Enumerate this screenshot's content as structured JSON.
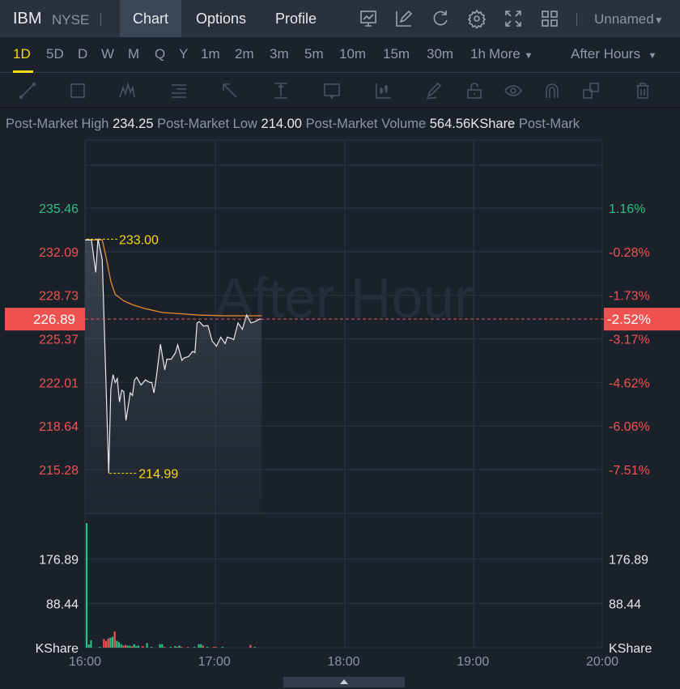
{
  "header": {
    "symbol": "IBM",
    "exchange": "NYSE",
    "tabs": [
      {
        "label": "Chart",
        "active": true
      },
      {
        "label": "Options"
      },
      {
        "label": "Profile"
      }
    ],
    "icons": [
      "indicator-icon",
      "draw-icon",
      "refresh-icon",
      "settings-icon",
      "fullscreen-icon",
      "layout-grid-icon"
    ],
    "layout_name": "Unnamed"
  },
  "periods": {
    "items": [
      "1D",
      "5D",
      "D",
      "W",
      "M",
      "Q",
      "Y",
      "1m",
      "2m",
      "3m",
      "5m",
      "10m",
      "15m",
      "30m",
      "1h"
    ],
    "active": "1D",
    "more_label": "More",
    "session_label": "After Hours"
  },
  "drawing_tools": [
    "line-tool-icon",
    "rectangle-tool-icon",
    "pattern-tool-icon",
    "fibonacci-tool-icon",
    "arrow-tool-icon",
    "measure-tool-icon",
    "text-tool-icon",
    "candle-tool-icon",
    "pencil-icon",
    "unlock-icon",
    "eye-icon",
    "magnet-icon",
    "clone-icon",
    "trash-icon"
  ],
  "stats": {
    "high_label": "Post-Market High",
    "high_value": "234.25",
    "low_label": "Post-Market Low",
    "low_value": "214.00",
    "volume_label": "Post-Market Volume",
    "volume_value": "564.56KShare",
    "extra_label": "Post-Mark"
  },
  "colors": {
    "up": "#2ebd85",
    "down": "#f0524f",
    "accent": "#f5d90a",
    "avg_line": "#e8892b",
    "price_line": "#e6e9ee"
  },
  "chart_data": {
    "type": "line",
    "watermark": "After Hour",
    "x_ticks": [
      "16:00",
      "17:00",
      "18:00",
      "19:00",
      "20:00"
    ],
    "xlim": [
      "16:00",
      "20:00"
    ],
    "price_axis": {
      "ylim": [
        215.28,
        235.46
      ],
      "left_ticks": [
        "235.46",
        "232.09",
        "228.73",
        "225.37",
        "222.01",
        "218.64",
        "215.28"
      ],
      "right_ticks": [
        "1.16%",
        "-0.28%",
        "-1.73%",
        "-3.17%",
        "-4.62%",
        "-6.06%",
        "-7.51%"
      ],
      "current_price": "226.89",
      "current_change": "-2.52%",
      "high_marker": {
        "time": "16:00",
        "value": 233.0,
        "label": "233.00"
      },
      "low_marker": {
        "time": "16:11",
        "value": 214.99,
        "label": "214.99"
      }
    },
    "price_series": [
      [
        "16:00",
        233.0
      ],
      [
        "16:03",
        233.0
      ],
      [
        "16:05",
        230.5
      ],
      [
        "16:06",
        233.1
      ],
      [
        "16:08",
        231.5
      ],
      [
        "16:11",
        214.99
      ],
      [
        "16:12",
        221.5
      ],
      [
        "16:13",
        222.6
      ],
      [
        "16:14",
        222.0
      ],
      [
        "16:15",
        222.3
      ],
      [
        "16:16",
        220.5
      ],
      [
        "16:17",
        221.4
      ],
      [
        "16:18",
        221.3
      ],
      [
        "16:19",
        219.07
      ],
      [
        "16:21",
        221.2
      ],
      [
        "16:22",
        221.0
      ],
      [
        "16:23",
        222.2
      ],
      [
        "16:24",
        222.4
      ],
      [
        "16:26",
        221.8
      ],
      [
        "16:28",
        222.2
      ],
      [
        "16:30",
        222.0
      ],
      [
        "16:31",
        222.0
      ],
      [
        "16:32",
        221.2
      ],
      [
        "16:33",
        222.3
      ],
      [
        "16:35",
        224.96
      ],
      [
        "16:37",
        222.98
      ],
      [
        "16:38",
        223.8
      ],
      [
        "16:40",
        223.8
      ],
      [
        "16:42",
        224.3
      ],
      [
        "16:43",
        224.9
      ],
      [
        "16:45",
        223.7
      ],
      [
        "16:46",
        223.9
      ],
      [
        "16:48",
        224.0
      ],
      [
        "16:50",
        224.4
      ],
      [
        "16:51",
        224.3
      ],
      [
        "16:52",
        226.6
      ],
      [
        "16:53",
        226.7
      ],
      [
        "16:55",
        226.35
      ],
      [
        "16:57",
        226.4
      ],
      [
        "16:59",
        225.2
      ],
      [
        "17:01",
        224.8
      ],
      [
        "17:03",
        225.5
      ],
      [
        "17:05",
        225.0
      ],
      [
        "17:06",
        225.5
      ],
      [
        "17:08",
        225.4
      ],
      [
        "17:09",
        225.3
      ],
      [
        "17:11",
        226.6
      ],
      [
        "17:13",
        226.1
      ],
      [
        "17:15",
        227.2
      ],
      [
        "17:17",
        226.6
      ],
      [
        "17:19",
        226.7
      ],
      [
        "17:21",
        226.9
      ],
      [
        "17:22",
        226.89
      ]
    ],
    "avg_series": [
      [
        "16:00",
        233.0
      ],
      [
        "16:08",
        233.0
      ],
      [
        "16:10",
        231.5
      ],
      [
        "16:12",
        229.8
      ],
      [
        "16:14",
        228.8
      ],
      [
        "16:18",
        228.3
      ],
      [
        "16:22",
        228.0
      ],
      [
        "16:28",
        227.7
      ],
      [
        "16:36",
        227.4
      ],
      [
        "16:45",
        227.3
      ],
      [
        "16:53",
        227.2
      ],
      [
        "17:05",
        227.15
      ],
      [
        "17:22",
        227.15
      ]
    ],
    "volume_axis": {
      "unit": "KShare",
      "ticks": [
        "176.89",
        "88.44"
      ],
      "tick_values": [
        176.89,
        88.44
      ]
    },
    "volume_series": [
      [
        "16:00",
        249,
        "up"
      ],
      [
        "16:01",
        6.5,
        "up"
      ],
      [
        "16:02",
        14.6,
        "up"
      ],
      [
        "16:06",
        1.6,
        "up"
      ],
      [
        "16:08",
        17.3,
        "down"
      ],
      [
        "16:09",
        13.5,
        "down"
      ],
      [
        "16:10",
        18.3,
        "down"
      ],
      [
        "16:11",
        19.9,
        "up"
      ],
      [
        "16:12",
        21.6,
        "up"
      ],
      [
        "16:13",
        32.4,
        "down"
      ],
      [
        "16:14",
        13.5,
        "up"
      ],
      [
        "16:15",
        10.8,
        "up"
      ],
      [
        "16:16",
        7,
        "up"
      ],
      [
        "16:17",
        4.3,
        "down"
      ],
      [
        "16:18",
        5.4,
        "down"
      ],
      [
        "16:19",
        4.3,
        "up"
      ],
      [
        "16:20",
        3.8,
        "up"
      ],
      [
        "16:21",
        2.7,
        "down"
      ],
      [
        "16:22",
        7,
        "up"
      ],
      [
        "16:23",
        3.2,
        "up"
      ],
      [
        "16:24",
        4.3,
        "up"
      ],
      [
        "16:26",
        3.2,
        "down"
      ],
      [
        "16:28",
        9.2,
        "up"
      ],
      [
        "16:30",
        1.6,
        "up"
      ],
      [
        "16:34",
        7,
        "up"
      ],
      [
        "16:35",
        7,
        "up"
      ],
      [
        "16:36",
        1.6,
        "down"
      ],
      [
        "16:39",
        1.6,
        "up"
      ],
      [
        "16:41",
        3.2,
        "up"
      ],
      [
        "16:42",
        1.6,
        "down"
      ],
      [
        "16:43",
        4.3,
        "up"
      ],
      [
        "16:44",
        1.6,
        "down"
      ],
      [
        "16:47",
        1.6,
        "down"
      ],
      [
        "16:50",
        1.6,
        "up"
      ],
      [
        "16:52",
        7,
        "up"
      ],
      [
        "16:53",
        7,
        "up"
      ],
      [
        "16:54",
        3.8,
        "down"
      ],
      [
        "16:56",
        1.6,
        "up"
      ],
      [
        "16:59",
        1.6,
        "down"
      ],
      [
        "17:00",
        1.6,
        "down"
      ],
      [
        "17:03",
        1.6,
        "up"
      ],
      [
        "17:16",
        5.4,
        "down"
      ],
      [
        "17:18",
        1.6,
        "up"
      ]
    ]
  }
}
